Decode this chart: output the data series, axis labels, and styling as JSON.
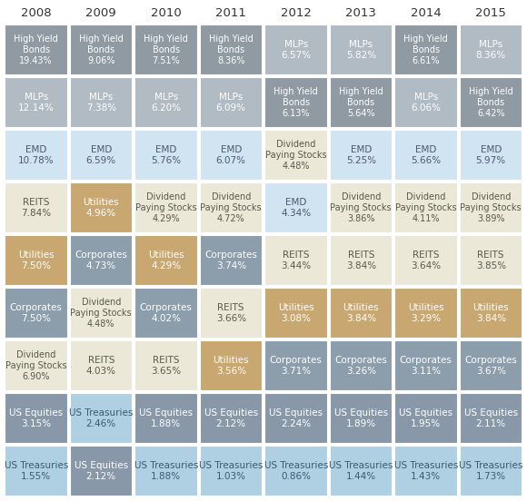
{
  "years": [
    "2008",
    "2009",
    "2010",
    "2011",
    "2012",
    "2013",
    "2014",
    "2015"
  ],
  "cells": [
    [
      {
        "label": "High Yield\nBonds\n19.43%",
        "color": "dark_gray"
      },
      {
        "label": "High Yield\nBonds\n9.06%",
        "color": "dark_gray"
      },
      {
        "label": "High Yield\nBonds\n7.51%",
        "color": "dark_gray"
      },
      {
        "label": "High Yield\nBonds\n8.36%",
        "color": "dark_gray"
      },
      {
        "label": "MLPs\n6.57%",
        "color": "medium_gray"
      },
      {
        "label": "MLPs\n5.82%",
        "color": "medium_gray"
      },
      {
        "label": "High Yield\nBonds\n6.61%",
        "color": "dark_gray"
      },
      {
        "label": "MLPs\n8.36%",
        "color": "medium_gray"
      }
    ],
    [
      {
        "label": "MLPs\n12.14%",
        "color": "medium_gray"
      },
      {
        "label": "MLPs\n7.38%",
        "color": "medium_gray"
      },
      {
        "label": "MLPs\n6.20%",
        "color": "medium_gray"
      },
      {
        "label": "MLPs\n6.09%",
        "color": "medium_gray"
      },
      {
        "label": "High Yield\nBonds\n6.13%",
        "color": "dark_gray"
      },
      {
        "label": "High Yield\nBonds\n5.64%",
        "color": "dark_gray"
      },
      {
        "label": "MLPs\n6.06%",
        "color": "medium_gray"
      },
      {
        "label": "High Yield\nBonds\n6.42%",
        "color": "dark_gray"
      }
    ],
    [
      {
        "label": "EMD\n10.78%",
        "color": "light_blue"
      },
      {
        "label": "EMD\n6.59%",
        "color": "light_blue"
      },
      {
        "label": "EMD\n5.76%",
        "color": "light_blue"
      },
      {
        "label": "EMD\n6.07%",
        "color": "light_blue"
      },
      {
        "label": "Dividend\nPaying Stocks\n4.48%",
        "color": "light_tan"
      },
      {
        "label": "EMD\n5.25%",
        "color": "light_blue"
      },
      {
        "label": "EMD\n5.66%",
        "color": "light_blue"
      },
      {
        "label": "EMD\n5.97%",
        "color": "light_blue"
      }
    ],
    [
      {
        "label": "REITS\n7.84%",
        "color": "light_tan"
      },
      {
        "label": "Utilities\n4.96%",
        "color": "tan"
      },
      {
        "label": "Dividend\nPaying Stocks\n4.29%",
        "color": "light_tan"
      },
      {
        "label": "Dividend\nPaying Stocks\n4.72%",
        "color": "light_tan"
      },
      {
        "label": "EMD\n4.34%",
        "color": "light_blue"
      },
      {
        "label": "Dividend\nPaying Stocks\n3.86%",
        "color": "light_tan"
      },
      {
        "label": "Dividend\nPaying Stocks\n4.11%",
        "color": "light_tan"
      },
      {
        "label": "Dividend\nPaying Stocks\n3.89%",
        "color": "light_tan"
      }
    ],
    [
      {
        "label": "Utilities\n7.50%",
        "color": "tan"
      },
      {
        "label": "Corporates\n4.73%",
        "color": "steel_blue"
      },
      {
        "label": "Utilities\n4.29%",
        "color": "tan"
      },
      {
        "label": "Corporates\n3.74%",
        "color": "steel_blue"
      },
      {
        "label": "REITS\n3.44%",
        "color": "light_tan"
      },
      {
        "label": "REITS\n3.84%",
        "color": "light_tan"
      },
      {
        "label": "REITS\n3.64%",
        "color": "light_tan"
      },
      {
        "label": "REITS\n3.85%",
        "color": "light_tan"
      }
    ],
    [
      {
        "label": "Corporates\n7.50%",
        "color": "steel_blue"
      },
      {
        "label": "Dividend\nPaying Stocks\n4.48%",
        "color": "light_tan"
      },
      {
        "label": "Corporates\n4.02%",
        "color": "steel_blue"
      },
      {
        "label": "REITS\n3.66%",
        "color": "light_tan"
      },
      {
        "label": "Utilities\n3.08%",
        "color": "tan"
      },
      {
        "label": "Utilities\n3.84%",
        "color": "tan"
      },
      {
        "label": "Utilities\n3.29%",
        "color": "tan"
      },
      {
        "label": "Utilities\n3.84%",
        "color": "tan"
      }
    ],
    [
      {
        "label": "Dividend\nPaying Stocks\n6.90%",
        "color": "light_tan"
      },
      {
        "label": "REITS\n4.03%",
        "color": "light_tan"
      },
      {
        "label": "REITS\n3.65%",
        "color": "light_tan"
      },
      {
        "label": "Utilities\n3.56%",
        "color": "tan"
      },
      {
        "label": "Corporates\n3.71%",
        "color": "steel_blue"
      },
      {
        "label": "Corporates\n3.26%",
        "color": "steel_blue"
      },
      {
        "label": "Corporates\n3.11%",
        "color": "steel_blue"
      },
      {
        "label": "Corporates\n3.67%",
        "color": "steel_blue"
      }
    ],
    [
      {
        "label": "US Equities\n3.15%",
        "color": "slate_blue"
      },
      {
        "label": "US Treasuries\n2.46%",
        "color": "sky_blue"
      },
      {
        "label": "US Equities\n1.88%",
        "color": "slate_blue"
      },
      {
        "label": "US Equities\n2.12%",
        "color": "slate_blue"
      },
      {
        "label": "US Equities\n2.24%",
        "color": "slate_blue"
      },
      {
        "label": "US Equities\n1.89%",
        "color": "slate_blue"
      },
      {
        "label": "US Equities\n1.95%",
        "color": "slate_blue"
      },
      {
        "label": "US Equities\n2.11%",
        "color": "slate_blue"
      }
    ],
    [
      {
        "label": "US Treasuries\n1.55%",
        "color": "sky_blue"
      },
      {
        "label": "US Equities\n2.12%",
        "color": "slate_blue"
      },
      {
        "label": "US Treasuries\n1.88%",
        "color": "sky_blue"
      },
      {
        "label": "US Treasuries\n1.03%",
        "color": "sky_blue"
      },
      {
        "label": "US Treasuries\n0.86%",
        "color": "sky_blue"
      },
      {
        "label": "US Treasuries\n1.44%",
        "color": "sky_blue"
      },
      {
        "label": "US Treasuries\n1.43%",
        "color": "sky_blue"
      },
      {
        "label": "US Treasuries\n1.73%",
        "color": "sky_blue"
      }
    ]
  ],
  "color_map": {
    "dark_gray": "#8f9aa3",
    "medium_gray": "#b0bbc3",
    "light_blue": "#d0e4f2",
    "light_tan": "#ece8d8",
    "tan": "#c8a870",
    "steel_blue": "#8c9dac",
    "slate_blue": "#8898a8",
    "sky_blue": "#aed0e2"
  },
  "text_color_map": {
    "dark_gray": "#ffffff",
    "medium_gray": "#ffffff",
    "light_blue": "#4a5a6a",
    "light_tan": "#5a5a4a",
    "tan": "#ffffff",
    "steel_blue": "#ffffff",
    "slate_blue": "#ffffff",
    "sky_blue": "#3a5a70"
  },
  "background_color": "#ffffff",
  "header_color": "#333333",
  "header_fontsize": 9.5,
  "cell_fontsize": 7.5,
  "cell_fontsize_3line": 7.0
}
